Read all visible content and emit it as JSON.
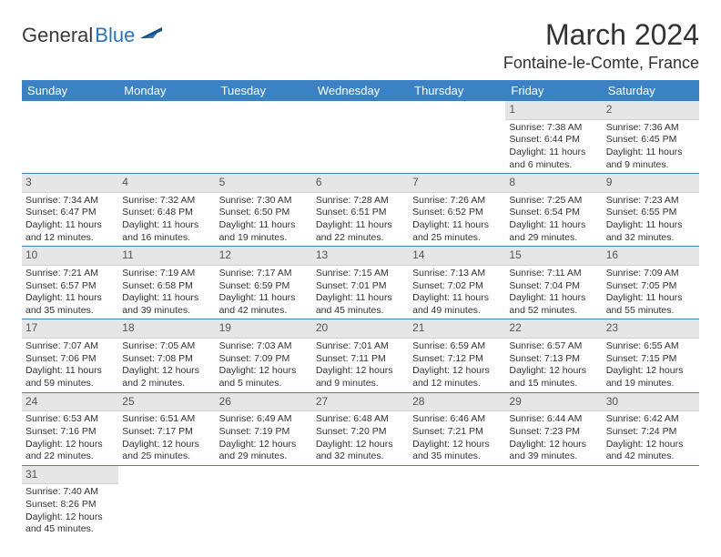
{
  "brand": {
    "part1": "General",
    "part2": "Blue"
  },
  "title": "March 2024",
  "location": "Fontaine-le-Comte, France",
  "colors": {
    "header_bg": "#3b82c4",
    "header_fg": "#ffffff",
    "daynum_bg": "#e6e6e6",
    "rule": "#3b82c4",
    "logo_blue": "#2b74b8",
    "logo_dark": "#3a3a3a"
  },
  "weekdays": [
    "Sunday",
    "Monday",
    "Tuesday",
    "Wednesday",
    "Thursday",
    "Friday",
    "Saturday"
  ],
  "grid": [
    [
      {
        "blank": true
      },
      {
        "blank": true
      },
      {
        "blank": true
      },
      {
        "blank": true
      },
      {
        "blank": true
      },
      {
        "n": "1",
        "sr": "Sunrise: 7:38 AM",
        "ss": "Sunset: 6:44 PM",
        "d1": "Daylight: 11 hours",
        "d2": "and 6 minutes."
      },
      {
        "n": "2",
        "sr": "Sunrise: 7:36 AM",
        "ss": "Sunset: 6:45 PM",
        "d1": "Daylight: 11 hours",
        "d2": "and 9 minutes."
      }
    ],
    [
      {
        "n": "3",
        "sr": "Sunrise: 7:34 AM",
        "ss": "Sunset: 6:47 PM",
        "d1": "Daylight: 11 hours",
        "d2": "and 12 minutes."
      },
      {
        "n": "4",
        "sr": "Sunrise: 7:32 AM",
        "ss": "Sunset: 6:48 PM",
        "d1": "Daylight: 11 hours",
        "d2": "and 16 minutes."
      },
      {
        "n": "5",
        "sr": "Sunrise: 7:30 AM",
        "ss": "Sunset: 6:50 PM",
        "d1": "Daylight: 11 hours",
        "d2": "and 19 minutes."
      },
      {
        "n": "6",
        "sr": "Sunrise: 7:28 AM",
        "ss": "Sunset: 6:51 PM",
        "d1": "Daylight: 11 hours",
        "d2": "and 22 minutes."
      },
      {
        "n": "7",
        "sr": "Sunrise: 7:26 AM",
        "ss": "Sunset: 6:52 PM",
        "d1": "Daylight: 11 hours",
        "d2": "and 25 minutes."
      },
      {
        "n": "8",
        "sr": "Sunrise: 7:25 AM",
        "ss": "Sunset: 6:54 PM",
        "d1": "Daylight: 11 hours",
        "d2": "and 29 minutes."
      },
      {
        "n": "9",
        "sr": "Sunrise: 7:23 AM",
        "ss": "Sunset: 6:55 PM",
        "d1": "Daylight: 11 hours",
        "d2": "and 32 minutes."
      }
    ],
    [
      {
        "n": "10",
        "sr": "Sunrise: 7:21 AM",
        "ss": "Sunset: 6:57 PM",
        "d1": "Daylight: 11 hours",
        "d2": "and 35 minutes."
      },
      {
        "n": "11",
        "sr": "Sunrise: 7:19 AM",
        "ss": "Sunset: 6:58 PM",
        "d1": "Daylight: 11 hours",
        "d2": "and 39 minutes."
      },
      {
        "n": "12",
        "sr": "Sunrise: 7:17 AM",
        "ss": "Sunset: 6:59 PM",
        "d1": "Daylight: 11 hours",
        "d2": "and 42 minutes."
      },
      {
        "n": "13",
        "sr": "Sunrise: 7:15 AM",
        "ss": "Sunset: 7:01 PM",
        "d1": "Daylight: 11 hours",
        "d2": "and 45 minutes."
      },
      {
        "n": "14",
        "sr": "Sunrise: 7:13 AM",
        "ss": "Sunset: 7:02 PM",
        "d1": "Daylight: 11 hours",
        "d2": "and 49 minutes."
      },
      {
        "n": "15",
        "sr": "Sunrise: 7:11 AM",
        "ss": "Sunset: 7:04 PM",
        "d1": "Daylight: 11 hours",
        "d2": "and 52 minutes."
      },
      {
        "n": "16",
        "sr": "Sunrise: 7:09 AM",
        "ss": "Sunset: 7:05 PM",
        "d1": "Daylight: 11 hours",
        "d2": "and 55 minutes."
      }
    ],
    [
      {
        "n": "17",
        "sr": "Sunrise: 7:07 AM",
        "ss": "Sunset: 7:06 PM",
        "d1": "Daylight: 11 hours",
        "d2": "and 59 minutes."
      },
      {
        "n": "18",
        "sr": "Sunrise: 7:05 AM",
        "ss": "Sunset: 7:08 PM",
        "d1": "Daylight: 12 hours",
        "d2": "and 2 minutes."
      },
      {
        "n": "19",
        "sr": "Sunrise: 7:03 AM",
        "ss": "Sunset: 7:09 PM",
        "d1": "Daylight: 12 hours",
        "d2": "and 5 minutes."
      },
      {
        "n": "20",
        "sr": "Sunrise: 7:01 AM",
        "ss": "Sunset: 7:11 PM",
        "d1": "Daylight: 12 hours",
        "d2": "and 9 minutes."
      },
      {
        "n": "21",
        "sr": "Sunrise: 6:59 AM",
        "ss": "Sunset: 7:12 PM",
        "d1": "Daylight: 12 hours",
        "d2": "and 12 minutes."
      },
      {
        "n": "22",
        "sr": "Sunrise: 6:57 AM",
        "ss": "Sunset: 7:13 PM",
        "d1": "Daylight: 12 hours",
        "d2": "and 15 minutes."
      },
      {
        "n": "23",
        "sr": "Sunrise: 6:55 AM",
        "ss": "Sunset: 7:15 PM",
        "d1": "Daylight: 12 hours",
        "d2": "and 19 minutes."
      }
    ],
    [
      {
        "n": "24",
        "sr": "Sunrise: 6:53 AM",
        "ss": "Sunset: 7:16 PM",
        "d1": "Daylight: 12 hours",
        "d2": "and 22 minutes."
      },
      {
        "n": "25",
        "sr": "Sunrise: 6:51 AM",
        "ss": "Sunset: 7:17 PM",
        "d1": "Daylight: 12 hours",
        "d2": "and 25 minutes."
      },
      {
        "n": "26",
        "sr": "Sunrise: 6:49 AM",
        "ss": "Sunset: 7:19 PM",
        "d1": "Daylight: 12 hours",
        "d2": "and 29 minutes."
      },
      {
        "n": "27",
        "sr": "Sunrise: 6:48 AM",
        "ss": "Sunset: 7:20 PM",
        "d1": "Daylight: 12 hours",
        "d2": "and 32 minutes."
      },
      {
        "n": "28",
        "sr": "Sunrise: 6:46 AM",
        "ss": "Sunset: 7:21 PM",
        "d1": "Daylight: 12 hours",
        "d2": "and 35 minutes."
      },
      {
        "n": "29",
        "sr": "Sunrise: 6:44 AM",
        "ss": "Sunset: 7:23 PM",
        "d1": "Daylight: 12 hours",
        "d2": "and 39 minutes."
      },
      {
        "n": "30",
        "sr": "Sunrise: 6:42 AM",
        "ss": "Sunset: 7:24 PM",
        "d1": "Daylight: 12 hours",
        "d2": "and 42 minutes."
      }
    ],
    [
      {
        "n": "31",
        "sr": "Sunrise: 7:40 AM",
        "ss": "Sunset: 8:26 PM",
        "d1": "Daylight: 12 hours",
        "d2": "and 45 minutes.",
        "last": true
      },
      {
        "blank": true,
        "last": true
      },
      {
        "blank": true,
        "last": true
      },
      {
        "blank": true,
        "last": true
      },
      {
        "blank": true,
        "last": true
      },
      {
        "blank": true,
        "last": true
      },
      {
        "blank": true,
        "last": true
      }
    ]
  ]
}
